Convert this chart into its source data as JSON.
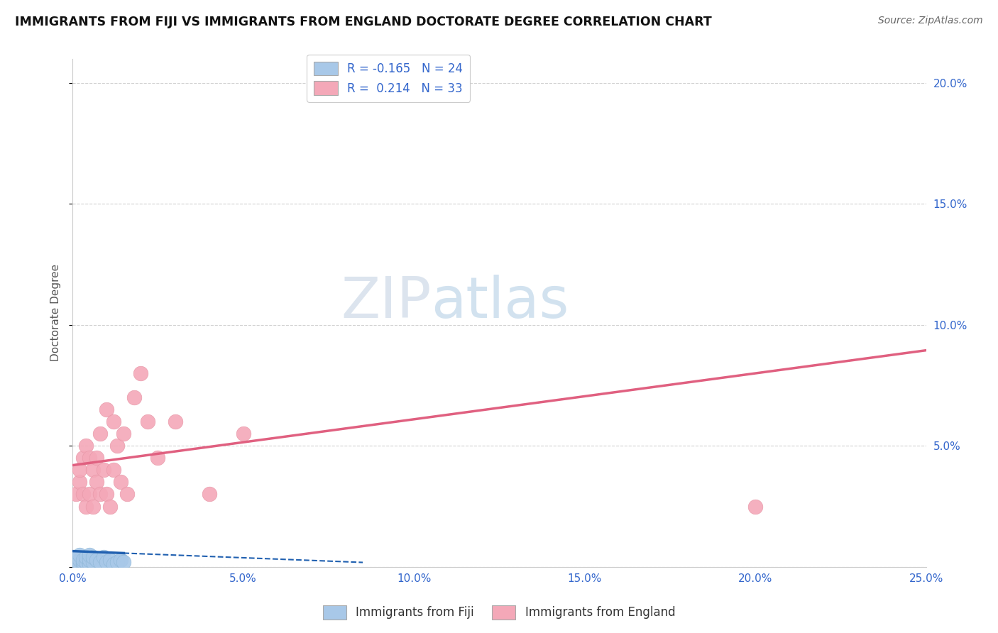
{
  "title": "IMMIGRANTS FROM FIJI VS IMMIGRANTS FROM ENGLAND DOCTORATE DEGREE CORRELATION CHART",
  "source": "Source: ZipAtlas.com",
  "ylabel_label": "Doctorate Degree",
  "xlim": [
    0.0,
    0.25
  ],
  "ylim": [
    0.0,
    0.21
  ],
  "xticks": [
    0.0,
    0.05,
    0.1,
    0.15,
    0.2,
    0.25
  ],
  "ytick_vals": [
    0.0,
    0.05,
    0.1,
    0.15,
    0.2
  ],
  "xtick_labels": [
    "0.0%",
    "5.0%",
    "10.0%",
    "15.0%",
    "20.0%",
    "25.0%"
  ],
  "ytick_labels": [
    "",
    "5.0%",
    "10.0%",
    "15.0%",
    "20.0%"
  ],
  "fiji_color": "#a8c8e8",
  "england_color": "#f4a8b8",
  "fiji_edge_color": "#90b8d8",
  "england_edge_color": "#e898a8",
  "fiji_line_color": "#2060b0",
  "england_line_color": "#e06080",
  "fiji_R": -0.165,
  "fiji_N": 24,
  "england_R": 0.214,
  "england_N": 33,
  "watermark": "ZIPatlas",
  "fiji_x": [
    0.001,
    0.001,
    0.002,
    0.002,
    0.002,
    0.003,
    0.003,
    0.003,
    0.004,
    0.004,
    0.005,
    0.005,
    0.005,
    0.006,
    0.006,
    0.007,
    0.008,
    0.009,
    0.01,
    0.011,
    0.012,
    0.013,
    0.014,
    0.015
  ],
  "fiji_y": [
    0.002,
    0.004,
    0.001,
    0.003,
    0.005,
    0.001,
    0.002,
    0.003,
    0.002,
    0.004,
    0.001,
    0.003,
    0.005,
    0.002,
    0.004,
    0.003,
    0.002,
    0.004,
    0.002,
    0.003,
    0.001,
    0.002,
    0.003,
    0.002
  ],
  "england_x": [
    0.001,
    0.002,
    0.002,
    0.003,
    0.003,
    0.004,
    0.004,
    0.005,
    0.005,
    0.006,
    0.006,
    0.007,
    0.007,
    0.008,
    0.008,
    0.009,
    0.01,
    0.01,
    0.011,
    0.012,
    0.012,
    0.013,
    0.014,
    0.015,
    0.016,
    0.018,
    0.02,
    0.022,
    0.025,
    0.03,
    0.04,
    0.05,
    0.2
  ],
  "england_y": [
    0.03,
    0.035,
    0.04,
    0.03,
    0.045,
    0.025,
    0.05,
    0.03,
    0.045,
    0.025,
    0.04,
    0.035,
    0.045,
    0.03,
    0.055,
    0.04,
    0.03,
    0.065,
    0.025,
    0.04,
    0.06,
    0.05,
    0.035,
    0.055,
    0.03,
    0.07,
    0.08,
    0.06,
    0.045,
    0.06,
    0.03,
    0.055,
    0.025
  ],
  "fiji_line_x0": 0.0,
  "fiji_line_x1": 0.015,
  "fiji_line_xd0": 0.015,
  "fiji_line_xd1": 0.085,
  "fiji_line_y_at_0": 0.0065,
  "fiji_line_slope": -0.055,
  "england_line_x0": 0.0,
  "england_line_x1": 0.25,
  "england_line_y_at_0": 0.042,
  "england_line_slope": 0.19
}
